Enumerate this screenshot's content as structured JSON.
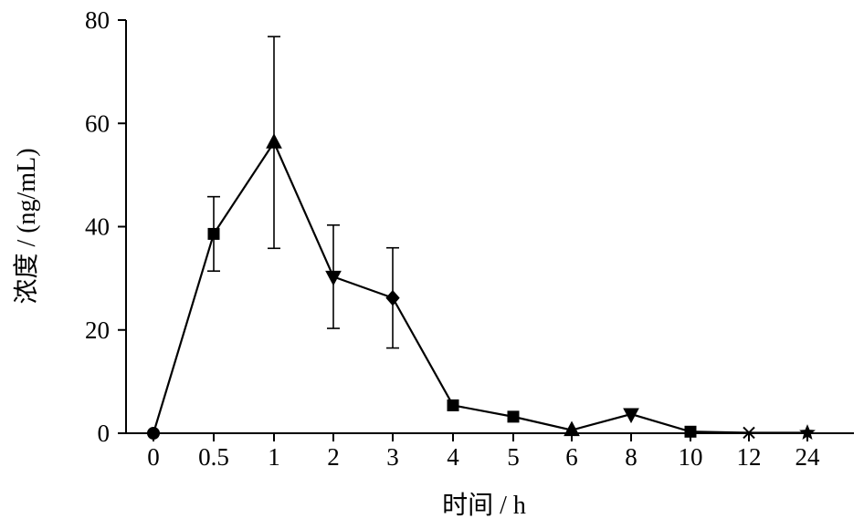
{
  "chart_data": {
    "type": "line",
    "xlabel": "时间 / h",
    "ylabel": "浓度 / (ng/mL)",
    "ylim": [
      0,
      80
    ],
    "yticks": [
      0,
      20,
      40,
      60,
      80
    ],
    "categories": [
      "0",
      "0.5",
      "1",
      "2",
      "3",
      "4",
      "5",
      "6",
      "8",
      "10",
      "12",
      "24"
    ],
    "series": [
      {
        "values": [
          0,
          38.6,
          56.3,
          30.3,
          26.2,
          5.4,
          3.2,
          0.6,
          3.7,
          0.3,
          0.1,
          0.1
        ],
        "errors": [
          0,
          7.2,
          20.5,
          10.0,
          9.7,
          0,
          0,
          0,
          0,
          0,
          0,
          0
        ],
        "markers": [
          "circle",
          "square",
          "triangle-up",
          "triangle-down",
          "diamond",
          "square",
          "square",
          "triangle-up",
          "triangle-down",
          "square",
          "x",
          "star"
        ]
      }
    ],
    "grid": false,
    "legend": "none"
  }
}
